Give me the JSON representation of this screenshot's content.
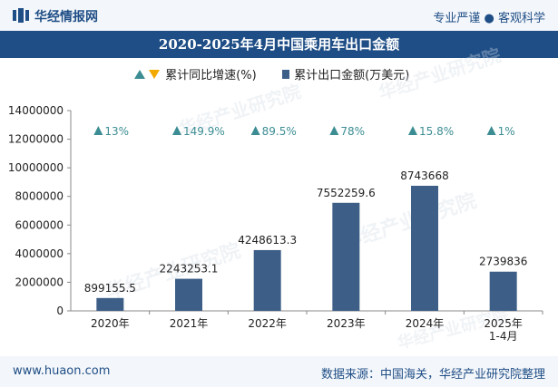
{
  "header": {
    "brand": "华经情报网",
    "tagline": "专业严谨 ● 客观科学"
  },
  "watermark_text": "华经产业研究院",
  "footer": {
    "url": "www.huaon.com",
    "source": "数据来源：中国海关，华经产业研究院整理"
  },
  "colors": {
    "bar": "#3d5f87",
    "triangle": "#3c8d93",
    "triangle_down": "#f2a900",
    "header_bg": "#1f4e86"
  },
  "chart_data": {
    "type": "bar",
    "title": "2020-2025年4月中国乘用车出口金额",
    "categories": [
      "2020年",
      "2021年",
      "2022年",
      "2023年",
      "2024年",
      "2025年\n1-4月"
    ],
    "series": [
      {
        "name": "累计出口金额(万美元)",
        "values": [
          899155.5,
          2243253.1,
          4248613.3,
          7552259.6,
          8743668,
          2739836
        ],
        "labels": [
          "899155.5",
          "2243253.1",
          "4248613.3",
          "7552259.6",
          "8743668",
          "2739836"
        ]
      },
      {
        "name": "累计同比增速(%)",
        "values": [
          13,
          149.9,
          89.5,
          78,
          15.8,
          1
        ],
        "labels": [
          "13%",
          "149.9%",
          "89.5%",
          "78%",
          "15.8%",
          "1%"
        ]
      }
    ],
    "ylim": [
      0,
      14000000
    ],
    "yticks": [
      0,
      2000000,
      4000000,
      6000000,
      8000000,
      10000000,
      12000000,
      14000000
    ],
    "ytick_labels": [
      "0",
      "2000000",
      "4000000",
      "6000000",
      "8000000",
      "10000000",
      "12000000",
      "14000000"
    ],
    "legend_position": "top-center"
  }
}
